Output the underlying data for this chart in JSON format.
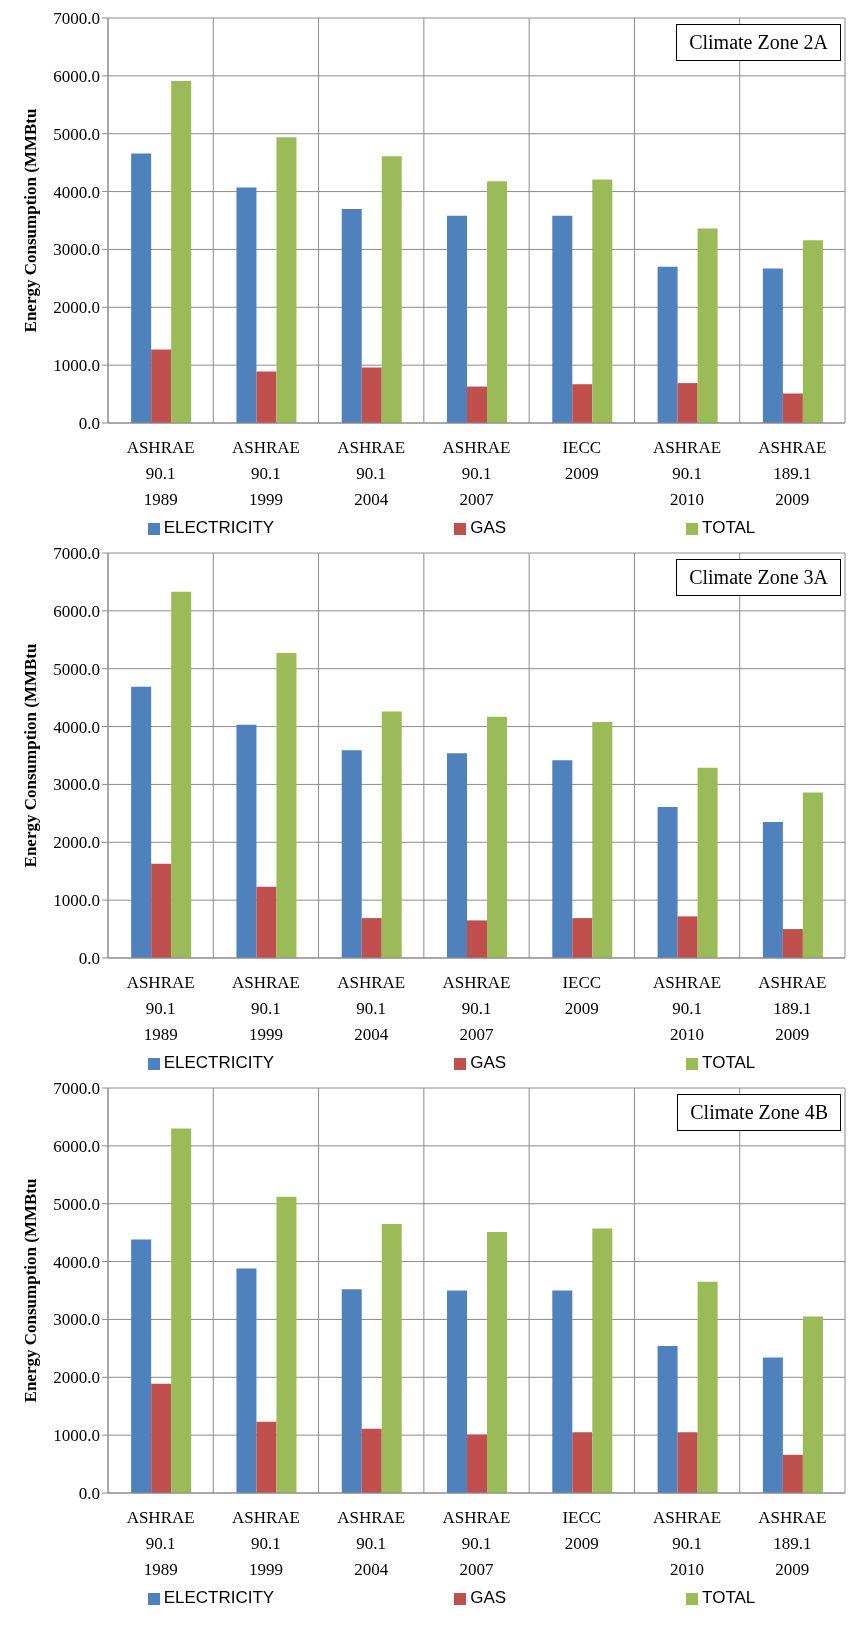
{
  "chart_data": [
    {
      "type": "bar",
      "title": "Climate Zone 2A",
      "ylabel": "Energy Consumption (MMBtu",
      "categories": [
        "ASHRAE\n90.1\n1989",
        "ASHRAE\n90.1\n1999",
        "ASHRAE\n90.1\n2004",
        "ASHRAE\n90.1\n2007",
        "IECC\n2009",
        "ASHRAE\n90.1\n2010",
        "ASHRAE\n189.1\n2009"
      ],
      "series": [
        {
          "name": "ELECTRICITY",
          "color": "#4f81bd",
          "values": [
            4660,
            4070,
            3700,
            3580,
            3580,
            2700,
            2670
          ]
        },
        {
          "name": "GAS",
          "color": "#c0504d",
          "values": [
            1270,
            890,
            960,
            630,
            670,
            690,
            510
          ]
        },
        {
          "name": "TOTAL",
          "color": "#9bbb59",
          "values": [
            5910,
            4940,
            4610,
            4180,
            4210,
            3360,
            3160
          ]
        }
      ],
      "ylim": [
        0,
        7000
      ],
      "yticks": [
        {
          "value": 0,
          "label": "0.0"
        },
        {
          "value": 1000,
          "label": "1000.0"
        },
        {
          "value": 2000,
          "label": "2000.0"
        },
        {
          "value": 3000,
          "label": "3000.0"
        },
        {
          "value": 4000,
          "label": "4000.0"
        },
        {
          "value": 5000,
          "label": "5000.0"
        },
        {
          "value": 6000,
          "label": "6000.0"
        },
        {
          "value": 7000,
          "label": "7000.0"
        }
      ],
      "grid": true,
      "legend": "bottom"
    },
    {
      "type": "bar",
      "title": "Climate Zone 3A",
      "ylabel": "Energy Consumption (MMBtu",
      "categories": [
        "ASHRAE\n90.1\n1989",
        "ASHRAE\n90.1\n1999",
        "ASHRAE\n90.1\n2004",
        "ASHRAE\n90.1\n2007",
        "IECC\n2009",
        "ASHRAE\n90.1\n2010",
        "ASHRAE\n189.1\n2009"
      ],
      "series": [
        {
          "name": "ELECTRICITY",
          "color": "#4f81bd",
          "values": [
            4690,
            4030,
            3590,
            3540,
            3420,
            2610,
            2350
          ]
        },
        {
          "name": "GAS",
          "color": "#c0504d",
          "values": [
            1630,
            1230,
            690,
            650,
            690,
            720,
            500
          ]
        },
        {
          "name": "TOTAL",
          "color": "#9bbb59",
          "values": [
            6330,
            5270,
            4260,
            4170,
            4080,
            3290,
            2860
          ]
        }
      ],
      "ylim": [
        0,
        7000
      ],
      "yticks": [
        {
          "value": 0,
          "label": "0.0"
        },
        {
          "value": 1000,
          "label": "1000.0"
        },
        {
          "value": 2000,
          "label": "2000.0"
        },
        {
          "value": 3000,
          "label": "3000.0"
        },
        {
          "value": 4000,
          "label": "4000.0"
        },
        {
          "value": 5000,
          "label": "5000.0"
        },
        {
          "value": 6000,
          "label": "6000.0"
        },
        {
          "value": 7000,
          "label": "7000.0"
        }
      ],
      "grid": true,
      "legend": "bottom"
    },
    {
      "type": "bar",
      "title": "Climate Zone 4B",
      "ylabel": "Energy Consumption (MMBtu",
      "categories": [
        "ASHRAE\n90.1\n1989",
        "ASHRAE\n90.1\n1999",
        "ASHRAE\n90.1\n2004",
        "ASHRAE\n90.1\n2007",
        "IECC\n2009",
        "ASHRAE\n90.1\n2010",
        "ASHRAE\n189.1\n2009"
      ],
      "series": [
        {
          "name": "ELECTRICITY",
          "color": "#4f81bd",
          "values": [
            4380,
            3880,
            3520,
            3500,
            3500,
            2540,
            2340
          ]
        },
        {
          "name": "GAS",
          "color": "#c0504d",
          "values": [
            1890,
            1230,
            1110,
            1010,
            1050,
            1050,
            660
          ]
        },
        {
          "name": "TOTAL",
          "color": "#9bbb59",
          "values": [
            6300,
            5120,
            4650,
            4510,
            4570,
            3650,
            3050
          ]
        }
      ],
      "ylim": [
        0,
        7000
      ],
      "yticks": [
        {
          "value": 0,
          "label": "0.0"
        },
        {
          "value": 1000,
          "label": "1000.0"
        },
        {
          "value": 2000,
          "label": "2000.0"
        },
        {
          "value": 3000,
          "label": "3000.0"
        },
        {
          "value": 4000,
          "label": "4000.0"
        },
        {
          "value": 5000,
          "label": "5000.0"
        },
        {
          "value": 6000,
          "label": "6000.0"
        },
        {
          "value": 7000,
          "label": "7000.0"
        }
      ],
      "grid": true,
      "legend": "bottom"
    }
  ]
}
